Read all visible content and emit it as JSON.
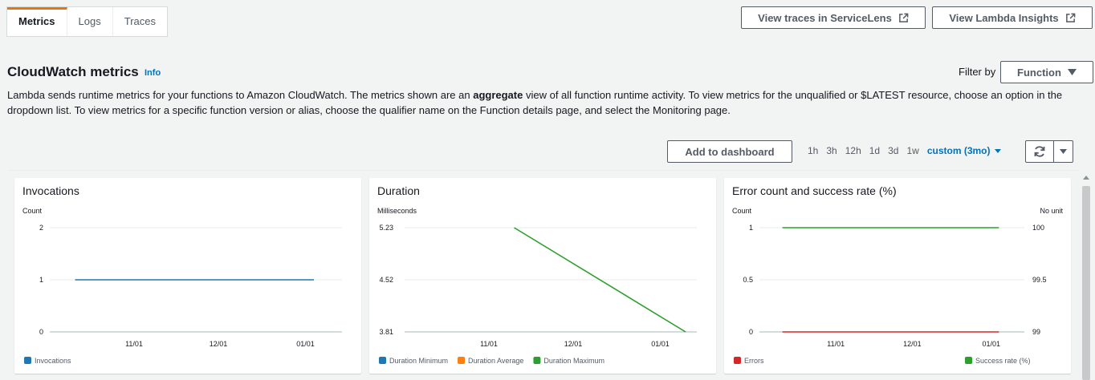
{
  "tabs": [
    {
      "label": "Metrics",
      "active": true
    },
    {
      "label": "Logs",
      "active": false
    },
    {
      "label": "Traces",
      "active": false
    }
  ],
  "actions": {
    "servicelens": "View traces in ServiceLens",
    "insights": "View Lambda Insights"
  },
  "header": {
    "title": "CloudWatch metrics",
    "info": "Info",
    "filter_label": "Filter by",
    "filter_value": "Function"
  },
  "description": {
    "part1": "Lambda sends runtime metrics for your functions to Amazon CloudWatch. The metrics shown are an ",
    "bold": "aggregate",
    "part2": " view of all function runtime activity. To view metrics for the unqualified or $LATEST resource, choose an option in the dropdown list. To view metrics for a specific function version or alias, choose the qualifier name on the Function details page, and select the Monitoring page."
  },
  "toolbar": {
    "add_dashboard": "Add to dashboard",
    "ranges": [
      "1h",
      "3h",
      "12h",
      "1d",
      "3d",
      "1w"
    ],
    "custom": "custom (3mo)"
  },
  "colors": {
    "accent": "#ec7211",
    "link": "#0073bb",
    "blue": "#1f77b4",
    "orange": "#ff7f0e",
    "green": "#2ca02c",
    "red": "#d62728"
  },
  "chart_data": [
    {
      "type": "line",
      "title": "Invocations",
      "ylabel": "Count",
      "x_ticks": [
        "11/01",
        "12/01",
        "01/01"
      ],
      "y_ticks": [
        "2",
        "1",
        "0"
      ],
      "ylim": [
        0,
        2
      ],
      "series": [
        {
          "name": "Invocations",
          "color": "#1f77b4",
          "points": [
            [
              "10/11",
              1
            ],
            [
              "01/04",
              1
            ]
          ]
        }
      ]
    },
    {
      "type": "line",
      "title": "Duration",
      "ylabel": "Milliseconds",
      "x_ticks": [
        "11/01",
        "12/01",
        "01/01"
      ],
      "y_ticks": [
        "5.23",
        "4.52",
        "3.81"
      ],
      "ylim": [
        3.81,
        5.23
      ],
      "series": [
        {
          "name": "Duration Minimum",
          "color": "#1f77b4",
          "points": []
        },
        {
          "name": "Duration Average",
          "color": "#ff7f0e",
          "points": []
        },
        {
          "name": "Duration Maximum",
          "color": "#2ca02c",
          "points": [
            [
              "11/10",
              5.23
            ],
            [
              "01/10",
              3.81
            ]
          ]
        }
      ]
    },
    {
      "type": "line",
      "title": "Error count and success rate (%)",
      "ylabel": "Count",
      "y2label": "No unit",
      "x_ticks": [
        "11/01",
        "12/01",
        "01/01"
      ],
      "y_ticks": [
        "1",
        "0.5",
        "0"
      ],
      "y2_ticks": [
        "100",
        "99.5",
        "99"
      ],
      "ylim": [
        0,
        1
      ],
      "y2lim": [
        99,
        100
      ],
      "series": [
        {
          "name": "Errors",
          "color": "#d62728",
          "axis": "left",
          "points": [
            [
              "10/11",
              0
            ],
            [
              "01/04",
              0
            ]
          ]
        },
        {
          "name": "Success rate (%)",
          "color": "#2ca02c",
          "axis": "right",
          "points": [
            [
              "10/11",
              100
            ],
            [
              "01/04",
              100
            ]
          ]
        }
      ]
    }
  ]
}
